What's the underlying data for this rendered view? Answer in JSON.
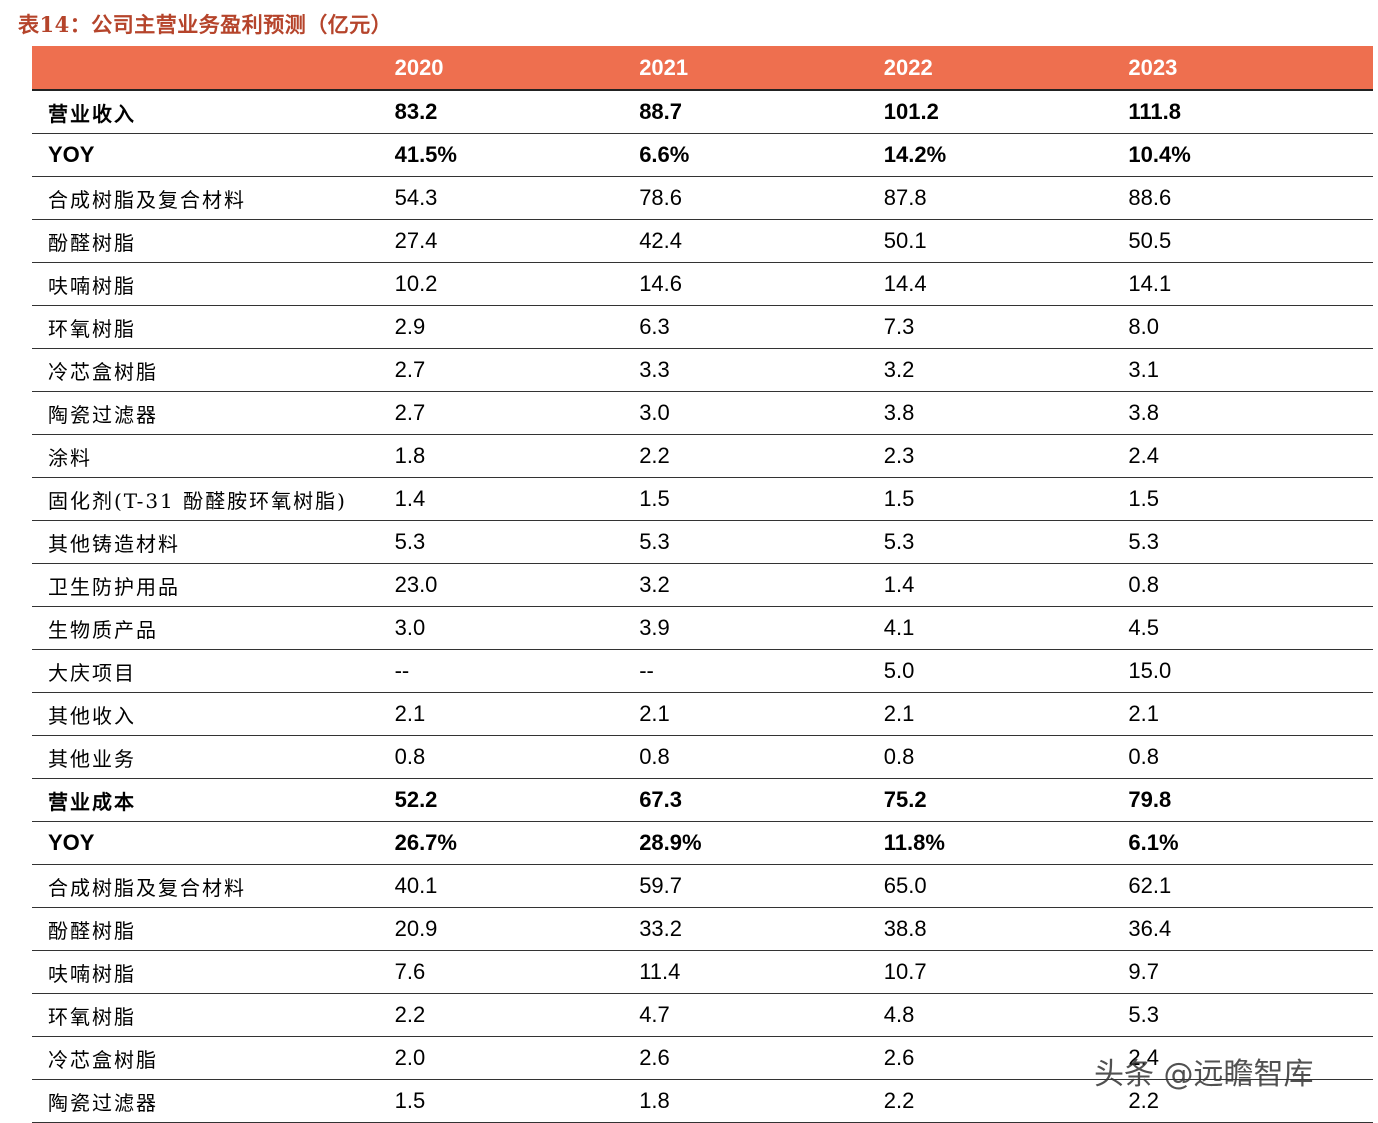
{
  "title": "表14：公司主营业务盈利预测（亿元）",
  "header": [
    "",
    "2020",
    "2021",
    "2022",
    "2023"
  ],
  "rows": [
    {
      "label": "营业收入",
      "bold": true,
      "values": [
        "83.2",
        "88.7",
        "101.2",
        "111.8"
      ]
    },
    {
      "label": "YOY",
      "bold": true,
      "latin": true,
      "values": [
        "41.5%",
        "6.6%",
        "14.2%",
        "10.4%"
      ]
    },
    {
      "label": "合成树脂及复合材料",
      "values": [
        "54.3",
        "78.6",
        "87.8",
        "88.6"
      ]
    },
    {
      "label": "酚醛树脂",
      "values": [
        "27.4",
        "42.4",
        "50.1",
        "50.5"
      ]
    },
    {
      "label": "呋喃树脂",
      "values": [
        "10.2",
        "14.6",
        "14.4",
        "14.1"
      ]
    },
    {
      "label": "环氧树脂",
      "values": [
        "2.9",
        "6.3",
        "7.3",
        "8.0"
      ]
    },
    {
      "label": "冷芯盒树脂",
      "values": [
        "2.7",
        "3.3",
        "3.2",
        "3.1"
      ]
    },
    {
      "label": "陶瓷过滤器",
      "values": [
        "2.7",
        "3.0",
        "3.8",
        "3.8"
      ]
    },
    {
      "label": "涂料",
      "values": [
        "1.8",
        "2.2",
        "2.3",
        "2.4"
      ]
    },
    {
      "label": "固化剂(T-31 酚醛胺环氧树脂)",
      "values": [
        "1.4",
        "1.5",
        "1.5",
        "1.5"
      ]
    },
    {
      "label": "其他铸造材料",
      "values": [
        "5.3",
        "5.3",
        "5.3",
        "5.3"
      ]
    },
    {
      "label": "卫生防护用品",
      "values": [
        "23.0",
        "3.2",
        "1.4",
        "0.8"
      ]
    },
    {
      "label": "生物质产品",
      "values": [
        "3.0",
        "3.9",
        "4.1",
        "4.5"
      ]
    },
    {
      "label": "大庆项目",
      "values": [
        "--",
        "--",
        "5.0",
        "15.0"
      ]
    },
    {
      "label": "其他收入",
      "values": [
        "2.1",
        "2.1",
        "2.1",
        "2.1"
      ]
    },
    {
      "label": "其他业务",
      "values": [
        "0.8",
        "0.8",
        "0.8",
        "0.8"
      ]
    },
    {
      "label": "营业成本",
      "bold": true,
      "values": [
        "52.2",
        "67.3",
        "75.2",
        "79.8"
      ]
    },
    {
      "label": "YOY",
      "bold": true,
      "latin": true,
      "values": [
        "26.7%",
        "28.9%",
        "11.8%",
        "6.1%"
      ]
    },
    {
      "label": "合成树脂及复合材料",
      "values": [
        "40.1",
        "59.7",
        "65.0",
        "62.1"
      ]
    },
    {
      "label": "酚醛树脂",
      "values": [
        "20.9",
        "33.2",
        "38.8",
        "36.4"
      ]
    },
    {
      "label": "呋喃树脂",
      "values": [
        "7.6",
        "11.4",
        "10.7",
        "9.7"
      ]
    },
    {
      "label": "环氧树脂",
      "values": [
        "2.2",
        "4.7",
        "4.8",
        "5.3"
      ]
    },
    {
      "label": "冷芯盒树脂",
      "values": [
        "2.0",
        "2.6",
        "2.6",
        "2.4"
      ]
    },
    {
      "label": "陶瓷过滤器",
      "values": [
        "1.5",
        "1.8",
        "2.2",
        "2.2"
      ]
    }
  ],
  "watermark": "头条 @远瞻智库"
}
